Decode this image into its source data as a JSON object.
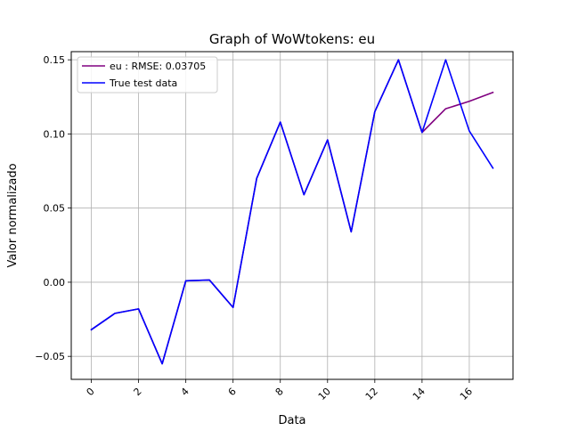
{
  "chart_data": {
    "type": "line",
    "title": "Graph of WoWtokens: eu",
    "xlabel": "Data",
    "ylabel": "Valor normalizado",
    "xlim": [
      -0.85,
      17.85
    ],
    "ylim": [
      -0.0655,
      0.1555
    ],
    "x_ticks": [
      0,
      2,
      4,
      6,
      8,
      10,
      12,
      14,
      16
    ],
    "y_ticks": [
      -0.05,
      0.0,
      0.05,
      0.1,
      0.15
    ],
    "x_tick_labels": [
      "0",
      "2",
      "4",
      "6",
      "8",
      "10",
      "12",
      "14",
      "16"
    ],
    "y_tick_labels": [
      "−0.05",
      "0.00",
      "0.05",
      "0.10",
      "0.15"
    ],
    "grid": true,
    "legend": "top-left",
    "x": [
      0,
      1,
      2,
      3,
      4,
      5,
      6,
      7,
      8,
      9,
      10,
      11,
      12,
      13,
      14,
      15,
      16,
      17
    ],
    "series": [
      {
        "name": "eu : RMSE: 0.03705",
        "color": "#800080",
        "values": [
          -0.032,
          -0.021,
          -0.018,
          -0.055,
          0.001,
          0.0015,
          -0.017,
          0.07,
          0.108,
          0.059,
          0.096,
          0.034,
          0.115,
          0.15,
          0.101,
          0.117,
          0.122,
          0.128
        ]
      },
      {
        "name": "True test data",
        "color": "#0000ff",
        "values": [
          -0.032,
          -0.021,
          -0.018,
          -0.055,
          0.001,
          0.0015,
          -0.017,
          0.07,
          0.108,
          0.059,
          0.096,
          0.034,
          0.115,
          0.15,
          0.101,
          0.15,
          0.102,
          0.077
        ]
      }
    ]
  }
}
